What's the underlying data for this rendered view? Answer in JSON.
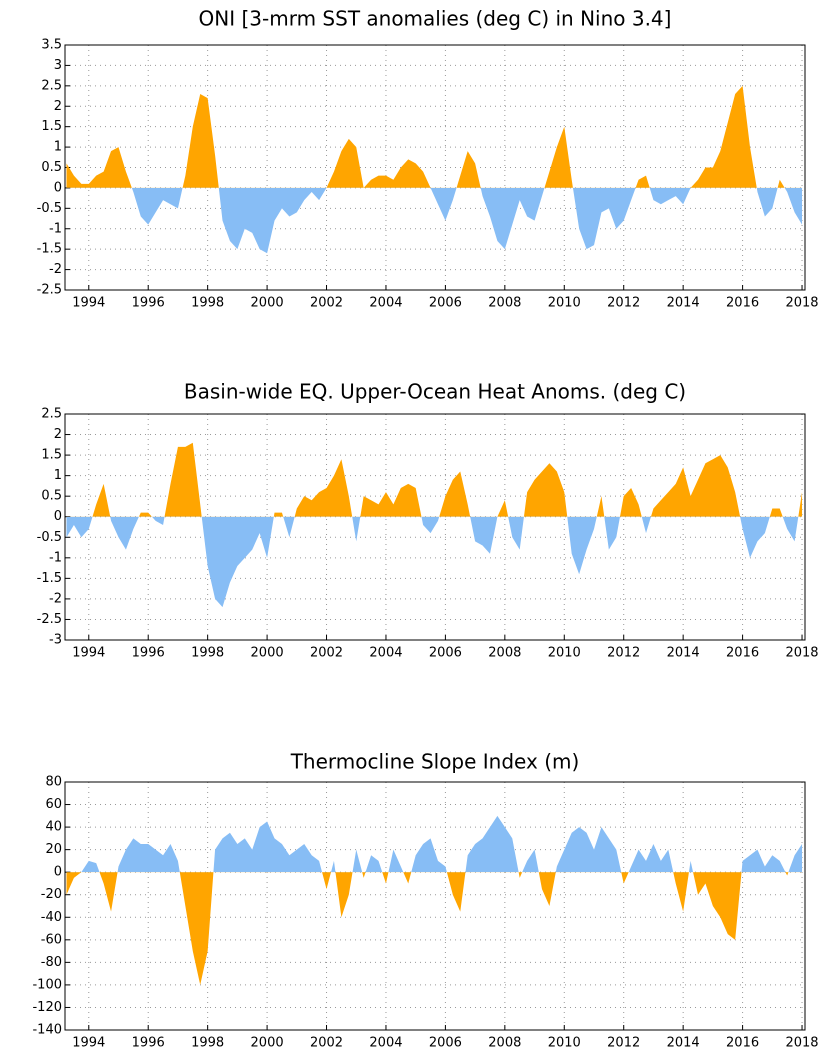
{
  "chart_data": [
    {
      "type": "area",
      "title": "ONI [3-mrm SST anomalies (deg C) in Nino 3.4]",
      "pos_color": "#ffa500",
      "neg_color": "#87bdf5",
      "grid": true,
      "xlim": [
        1993.2,
        2018.1
      ],
      "xticks": [
        1994,
        1996,
        1998,
        2000,
        2002,
        2004,
        2006,
        2008,
        2010,
        2012,
        2014,
        2016,
        2018
      ],
      "ylim": [
        -2.5,
        3.5
      ],
      "yticks": [
        -2.5,
        -2,
        -1.5,
        -1,
        -0.5,
        0,
        0.5,
        1,
        1.5,
        2,
        2.5,
        3,
        3.5
      ],
      "x": [
        1993.25,
        1993.5,
        1993.75,
        1994,
        1994.25,
        1994.5,
        1994.75,
        1995,
        1995.25,
        1995.5,
        1995.75,
        1996,
        1996.25,
        1996.5,
        1996.75,
        1997,
        1997.25,
        1997.5,
        1997.75,
        1998,
        1998.25,
        1998.5,
        1998.75,
        1999,
        1999.25,
        1999.5,
        1999.75,
        2000,
        2000.25,
        2000.5,
        2000.75,
        2001,
        2001.25,
        2001.5,
        2001.75,
        2002,
        2002.25,
        2002.5,
        2002.75,
        2003,
        2003.25,
        2003.5,
        2003.75,
        2004,
        2004.25,
        2004.5,
        2004.75,
        2005,
        2005.25,
        2005.5,
        2005.75,
        2006,
        2006.25,
        2006.5,
        2006.75,
        2007,
        2007.25,
        2007.5,
        2007.75,
        2008,
        2008.25,
        2008.5,
        2008.75,
        2009,
        2009.25,
        2009.5,
        2009.75,
        2010,
        2010.25,
        2010.5,
        2010.75,
        2011,
        2011.25,
        2011.5,
        2011.75,
        2012,
        2012.25,
        2012.5,
        2012.75,
        2013,
        2013.25,
        2013.5,
        2013.75,
        2014,
        2014.25,
        2014.5,
        2014.75,
        2015,
        2015.25,
        2015.5,
        2015.75,
        2016,
        2016.25,
        2016.5,
        2016.75,
        2017,
        2017.25,
        2017.5,
        2017.75,
        2018
      ],
      "values": [
        0.6,
        0.3,
        0.1,
        0.1,
        0.3,
        0.4,
        0.9,
        1.0,
        0.4,
        -0.1,
        -0.7,
        -0.9,
        -0.6,
        -0.3,
        -0.4,
        -0.5,
        0.3,
        1.5,
        2.3,
        2.2,
        0.8,
        -0.8,
        -1.3,
        -1.5,
        -1.0,
        -1.1,
        -1.5,
        -1.6,
        -0.8,
        -0.5,
        -0.7,
        -0.6,
        -0.3,
        -0.1,
        -0.3,
        0.0,
        0.4,
        0.9,
        1.2,
        1.0,
        0.0,
        0.2,
        0.3,
        0.3,
        0.2,
        0.5,
        0.7,
        0.6,
        0.4,
        0.0,
        -0.4,
        -0.8,
        -0.3,
        0.3,
        0.9,
        0.6,
        -0.2,
        -0.7,
        -1.3,
        -1.5,
        -0.9,
        -0.3,
        -0.7,
        -0.8,
        -0.2,
        0.4,
        1.0,
        1.5,
        0.2,
        -1.0,
        -1.5,
        -1.4,
        -0.6,
        -0.5,
        -1.0,
        -0.8,
        -0.3,
        0.2,
        0.3,
        -0.3,
        -0.4,
        -0.3,
        -0.2,
        -0.4,
        0.0,
        0.2,
        0.5,
        0.5,
        0.9,
        1.6,
        2.3,
        2.5,
        1.0,
        -0.1,
        -0.7,
        -0.5,
        0.2,
        -0.1,
        -0.6,
        -0.9
      ]
    },
    {
      "type": "area",
      "title": "Basin-wide EQ. Upper-Ocean Heat Anoms. (deg C)",
      "pos_color": "#ffa500",
      "neg_color": "#87bdf5",
      "grid": true,
      "xlim": [
        1993.2,
        2018.1
      ],
      "xticks": [
        1994,
        1996,
        1998,
        2000,
        2002,
        2004,
        2006,
        2008,
        2010,
        2012,
        2014,
        2016,
        2018
      ],
      "ylim": [
        -3,
        2.5
      ],
      "yticks": [
        -3,
        -2.5,
        -2,
        -1.5,
        -1,
        -0.5,
        0,
        0.5,
        1,
        1.5,
        2,
        2.5
      ],
      "x": [
        1993.25,
        1993.5,
        1993.75,
        1994,
        1994.25,
        1994.5,
        1994.75,
        1995,
        1995.25,
        1995.5,
        1995.75,
        1996,
        1996.25,
        1996.5,
        1996.75,
        1997,
        1997.25,
        1997.5,
        1997.75,
        1998,
        1998.25,
        1998.5,
        1998.75,
        1999,
        1999.25,
        1999.5,
        1999.75,
        2000,
        2000.25,
        2000.5,
        2000.75,
        2001,
        2001.25,
        2001.5,
        2001.75,
        2002,
        2002.25,
        2002.5,
        2002.75,
        2003,
        2003.25,
        2003.5,
        2003.75,
        2004,
        2004.25,
        2004.5,
        2004.75,
        2005,
        2005.25,
        2005.5,
        2005.75,
        2006,
        2006.25,
        2006.5,
        2006.75,
        2007,
        2007.25,
        2007.5,
        2007.75,
        2008,
        2008.25,
        2008.5,
        2008.75,
        2009,
        2009.25,
        2009.5,
        2009.75,
        2010,
        2010.25,
        2010.5,
        2010.75,
        2011,
        2011.25,
        2011.5,
        2011.75,
        2012,
        2012.25,
        2012.5,
        2012.75,
        2013,
        2013.25,
        2013.5,
        2013.75,
        2014,
        2014.25,
        2014.5,
        2014.75,
        2015,
        2015.25,
        2015.5,
        2015.75,
        2016,
        2016.25,
        2016.5,
        2016.75,
        2017,
        2017.25,
        2017.5,
        2017.75,
        2018
      ],
      "values": [
        -0.5,
        -0.2,
        -0.5,
        -0.3,
        0.3,
        0.8,
        -0.1,
        -0.5,
        -0.8,
        -0.3,
        0.1,
        0.1,
        -0.1,
        -0.2,
        0.8,
        1.7,
        1.7,
        1.8,
        0.3,
        -1.2,
        -2.0,
        -2.2,
        -1.6,
        -1.2,
        -1.0,
        -0.8,
        -0.4,
        -1.0,
        0.1,
        0.1,
        -0.5,
        0.2,
        0.5,
        0.4,
        0.6,
        0.7,
        1.0,
        1.4,
        0.5,
        -0.6,
        0.5,
        0.4,
        0.3,
        0.6,
        0.3,
        0.7,
        0.8,
        0.7,
        -0.2,
        -0.4,
        -0.1,
        0.5,
        0.9,
        1.1,
        0.3,
        -0.6,
        -0.7,
        -0.9,
        0.0,
        0.4,
        -0.5,
        -0.8,
        0.6,
        0.9,
        1.1,
        1.3,
        1.1,
        0.6,
        -0.9,
        -1.4,
        -0.8,
        -0.3,
        0.5,
        -0.8,
        -0.5,
        0.5,
        0.7,
        0.3,
        -0.4,
        0.2,
        0.4,
        0.6,
        0.8,
        1.2,
        0.5,
        0.9,
        1.3,
        1.4,
        1.5,
        1.2,
        0.6,
        -0.3,
        -1.0,
        -0.6,
        -0.4,
        0.2,
        0.2,
        -0.3,
        -0.6,
        0.6
      ]
    },
    {
      "type": "area",
      "title": "Thermocline Slope Index (m)",
      "pos_color": "#87bdf5",
      "neg_color": "#ffa500",
      "grid": true,
      "xlim": [
        1993.2,
        2018.1
      ],
      "xticks": [
        1994,
        1996,
        1998,
        2000,
        2002,
        2004,
        2006,
        2008,
        2010,
        2012,
        2014,
        2016,
        2018
      ],
      "ylim": [
        -140,
        80
      ],
      "yticks": [
        -140,
        -120,
        -100,
        -80,
        -60,
        -40,
        -20,
        0,
        20,
        40,
        60,
        80
      ],
      "x": [
        1993.25,
        1993.5,
        1993.75,
        1994,
        1994.25,
        1994.5,
        1994.75,
        1995,
        1995.25,
        1995.5,
        1995.75,
        1996,
        1996.25,
        1996.5,
        1996.75,
        1997,
        1997.25,
        1997.5,
        1997.75,
        1998,
        1998.25,
        1998.5,
        1998.75,
        1999,
        1999.25,
        1999.5,
        1999.75,
        2000,
        2000.25,
        2000.5,
        2000.75,
        2001,
        2001.25,
        2001.5,
        2001.75,
        2002,
        2002.25,
        2002.5,
        2002.75,
        2003,
        2003.25,
        2003.5,
        2003.75,
        2004,
        2004.25,
        2004.5,
        2004.75,
        2005,
        2005.25,
        2005.5,
        2005.75,
        2006,
        2006.25,
        2006.5,
        2006.75,
        2007,
        2007.25,
        2007.5,
        2007.75,
        2008,
        2008.25,
        2008.5,
        2008.75,
        2009,
        2009.25,
        2009.5,
        2009.75,
        2010,
        2010.25,
        2010.5,
        2010.75,
        2011,
        2011.25,
        2011.5,
        2011.75,
        2012,
        2012.25,
        2012.5,
        2012.75,
        2013,
        2013.25,
        2013.5,
        2013.75,
        2014,
        2014.25,
        2014.5,
        2014.75,
        2015,
        2015.25,
        2015.5,
        2015.75,
        2016,
        2016.25,
        2016.5,
        2016.75,
        2017,
        2017.25,
        2017.5,
        2017.75,
        2018
      ],
      "values": [
        -20,
        -5,
        0,
        10,
        8,
        -10,
        -35,
        5,
        20,
        30,
        25,
        25,
        20,
        15,
        25,
        10,
        -30,
        -70,
        -100,
        -70,
        20,
        30,
        35,
        25,
        30,
        20,
        40,
        45,
        30,
        25,
        15,
        20,
        25,
        15,
        10,
        -15,
        10,
        -40,
        -20,
        20,
        -5,
        15,
        10,
        -10,
        20,
        5,
        -10,
        15,
        25,
        30,
        10,
        5,
        -20,
        -35,
        15,
        25,
        30,
        40,
        50,
        40,
        30,
        -5,
        10,
        20,
        -15,
        -30,
        5,
        20,
        35,
        40,
        35,
        20,
        40,
        30,
        20,
        -10,
        5,
        20,
        10,
        25,
        10,
        20,
        -10,
        -35,
        10,
        -20,
        -10,
        -30,
        -40,
        -55,
        -60,
        10,
        15,
        20,
        5,
        15,
        10,
        -3,
        15,
        25
      ]
    }
  ]
}
